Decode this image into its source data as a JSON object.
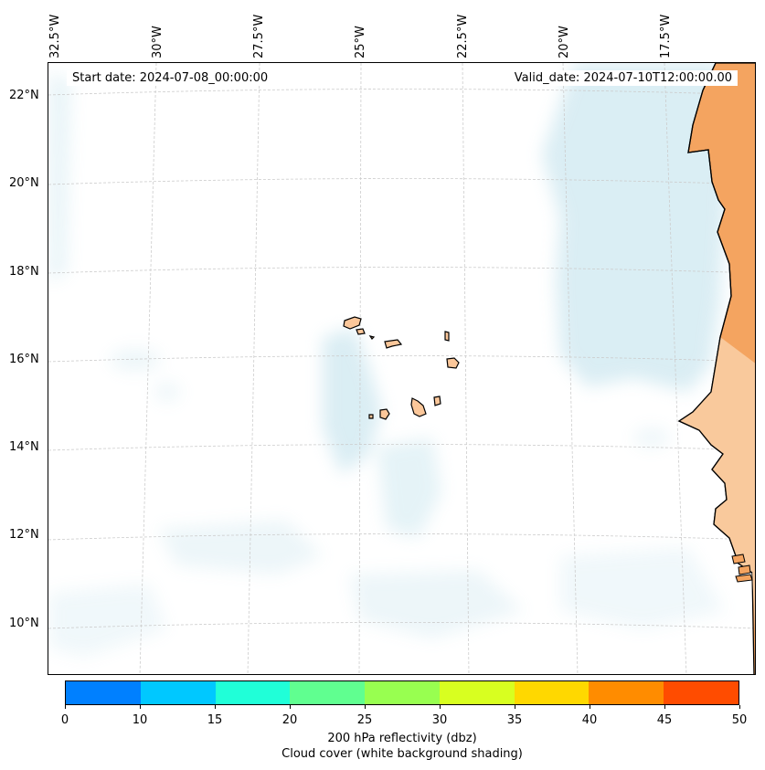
{
  "longitude_labels": [
    "32.5°W",
    "30°W",
    "27.5°W",
    "25°W",
    "22.5°W",
    "20°W",
    "17.5°W"
  ],
  "latitude_labels": [
    "22°N",
    "20°N",
    "18°N",
    "16°N",
    "14°N",
    "12°N",
    "10°N"
  ],
  "start_date": "Start date: 2024-07-08_00:00:00",
  "valid_date": "Valid_date: 2024-07-10T12:00:00.00",
  "colorbar": {
    "label_line1": "200 hPa reflectivity (dbz)",
    "label_line2": "Cloud cover (white background shading)",
    "ticks": [
      "0",
      "10",
      "15",
      "20",
      "25",
      "30",
      "35",
      "40",
      "45",
      "50"
    ],
    "colors": [
      "#0080ff",
      "#00c8ff",
      "#20ffd8",
      "#60ff90",
      "#98ff50",
      "#d8ff20",
      "#ffd800",
      "#ff8c00",
      "#ff4c00"
    ]
  },
  "colors": {
    "land": "#f4a460",
    "land_light": "#fbd5b0",
    "cloud": "#add8e6",
    "gridline": "#cccccc",
    "coastline": "#000000"
  }
}
